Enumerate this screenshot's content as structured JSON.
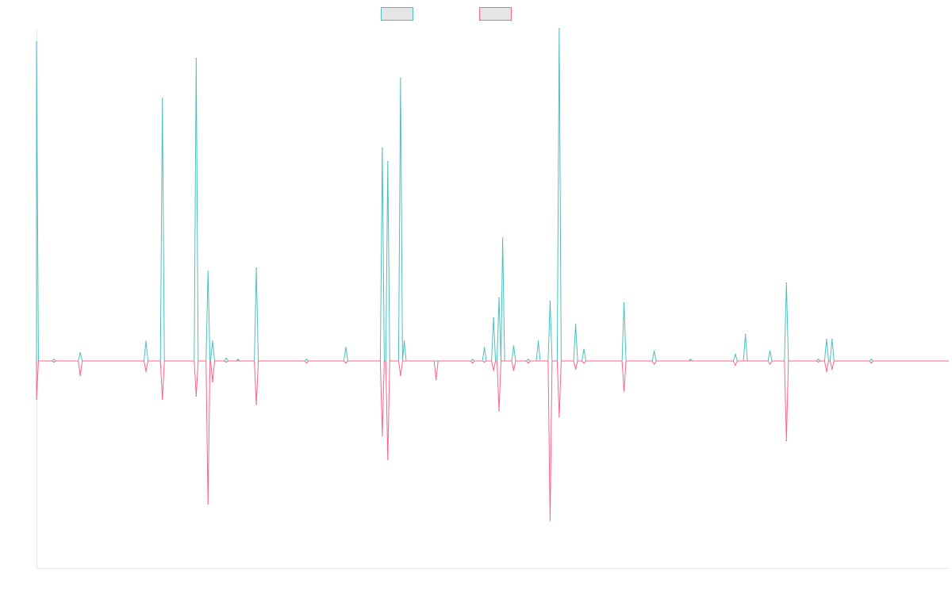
{
  "chart_data": {
    "type": "line",
    "title": "",
    "xlabel": "",
    "ylabel": "",
    "grid": false,
    "legend_position": "top-center",
    "x_range": [
      0,
      1
    ],
    "y_range": [
      -100,
      100
    ],
    "series": [
      {
        "name": "",
        "color": "#4bc0c0",
        "legend_fill": "#e5e5e5",
        "direction": "up",
        "spikes": [
          {
            "x": 0.0,
            "y": 96
          },
          {
            "x": 0.019,
            "y": 0.5
          },
          {
            "x": 0.048,
            "y": 2.5
          },
          {
            "x": 0.12,
            "y": 6
          },
          {
            "x": 0.138,
            "y": 79
          },
          {
            "x": 0.175,
            "y": 91
          },
          {
            "x": 0.188,
            "y": 27
          },
          {
            "x": 0.193,
            "y": 6
          },
          {
            "x": 0.208,
            "y": 0.8
          },
          {
            "x": 0.221,
            "y": 0.5
          },
          {
            "x": 0.241,
            "y": 28
          },
          {
            "x": 0.296,
            "y": 0.5
          },
          {
            "x": 0.339,
            "y": 4
          },
          {
            "x": 0.379,
            "y": 64
          },
          {
            "x": 0.385,
            "y": 60
          },
          {
            "x": 0.399,
            "y": 85
          },
          {
            "x": 0.403,
            "y": 6
          },
          {
            "x": 0.478,
            "y": 0.5
          },
          {
            "x": 0.491,
            "y": 4
          },
          {
            "x": 0.501,
            "y": 13
          },
          {
            "x": 0.507,
            "y": 19
          },
          {
            "x": 0.511,
            "y": 37
          },
          {
            "x": 0.523,
            "y": 4.5
          },
          {
            "x": 0.539,
            "y": 0.5
          },
          {
            "x": 0.55,
            "y": 6
          },
          {
            "x": 0.563,
            "y": 18
          },
          {
            "x": 0.573,
            "y": 100
          },
          {
            "x": 0.591,
            "y": 11
          },
          {
            "x": 0.6,
            "y": 3.5
          },
          {
            "x": 0.644,
            "y": 17.5
          },
          {
            "x": 0.677,
            "y": 3
          },
          {
            "x": 0.717,
            "y": 0.5
          },
          {
            "x": 0.766,
            "y": 2
          },
          {
            "x": 0.777,
            "y": 8
          },
          {
            "x": 0.804,
            "y": 3
          },
          {
            "x": 0.822,
            "y": 23.5
          },
          {
            "x": 0.857,
            "y": 0.5
          },
          {
            "x": 0.866,
            "y": 6.5
          },
          {
            "x": 0.872,
            "y": 6.5
          },
          {
            "x": 0.915,
            "y": 0.5
          }
        ]
      },
      {
        "name": "",
        "color": "#ff6384",
        "legend_fill": "#e5e5e5",
        "direction": "down",
        "spikes": [
          {
            "x": 0.0,
            "y": -18.5
          },
          {
            "x": 0.019,
            "y": -0.5
          },
          {
            "x": 0.048,
            "y": -7
          },
          {
            "x": 0.12,
            "y": -5
          },
          {
            "x": 0.138,
            "y": -18.5
          },
          {
            "x": 0.175,
            "y": -17
          },
          {
            "x": 0.188,
            "y": -69
          },
          {
            "x": 0.193,
            "y": -10
          },
          {
            "x": 0.208,
            "y": -0.5
          },
          {
            "x": 0.241,
            "y": -21
          },
          {
            "x": 0.296,
            "y": -1
          },
          {
            "x": 0.339,
            "y": -1
          },
          {
            "x": 0.379,
            "y": -36
          },
          {
            "x": 0.385,
            "y": -47.5
          },
          {
            "x": 0.399,
            "y": -7
          },
          {
            "x": 0.438,
            "y": -9
          },
          {
            "x": 0.478,
            "y": -1
          },
          {
            "x": 0.491,
            "y": -0.5
          },
          {
            "x": 0.501,
            "y": -4.5
          },
          {
            "x": 0.507,
            "y": -24
          },
          {
            "x": 0.523,
            "y": -4.5
          },
          {
            "x": 0.539,
            "y": -1
          },
          {
            "x": 0.563,
            "y": -77
          },
          {
            "x": 0.573,
            "y": -27
          },
          {
            "x": 0.591,
            "y": -4
          },
          {
            "x": 0.6,
            "y": -1
          },
          {
            "x": 0.644,
            "y": -14.5
          },
          {
            "x": 0.677,
            "y": -1.5
          },
          {
            "x": 0.766,
            "y": -2
          },
          {
            "x": 0.804,
            "y": -1.5
          },
          {
            "x": 0.822,
            "y": -38.5
          },
          {
            "x": 0.857,
            "y": -0.5
          },
          {
            "x": 0.866,
            "y": -5
          },
          {
            "x": 0.872,
            "y": -4
          },
          {
            "x": 0.915,
            "y": -1
          }
        ]
      }
    ]
  }
}
